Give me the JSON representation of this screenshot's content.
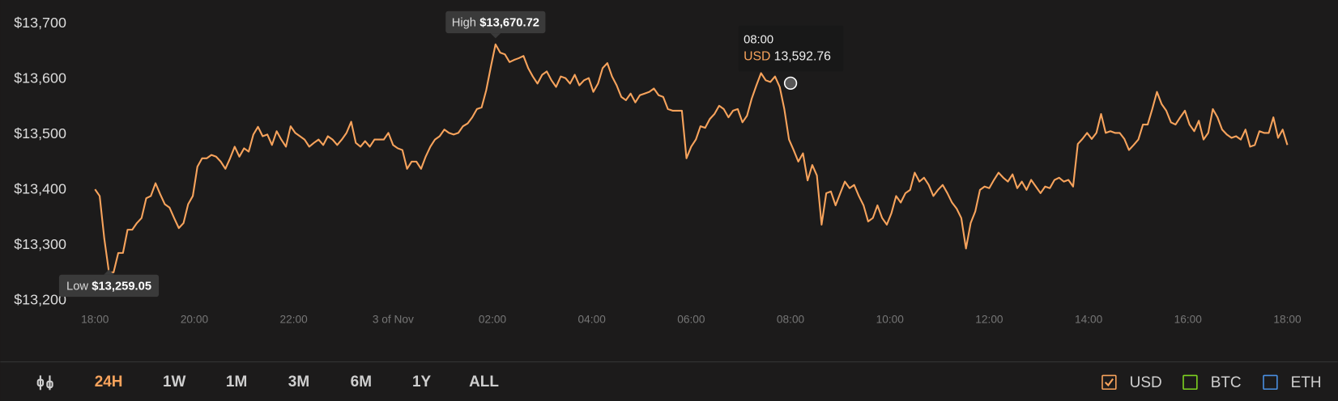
{
  "chart_data": {
    "type": "line",
    "series": [
      {
        "name": "USD",
        "color": "#f7a35c",
        "values": [
          13401,
          13389,
          13312,
          13251,
          13251,
          13286,
          13286,
          13328,
          13328,
          13340,
          13349,
          13385,
          13389,
          13412,
          13392,
          13374,
          13368,
          13349,
          13331,
          13340,
          13374,
          13389,
          13442,
          13457,
          13457,
          13463,
          13460,
          13451,
          13438,
          13457,
          13478,
          13460,
          13475,
          13469,
          13500,
          13514,
          13497,
          13500,
          13481,
          13506,
          13491,
          13478,
          13515,
          13503,
          13497,
          13491,
          13478,
          13485,
          13491,
          13481,
          13497,
          13491,
          13481,
          13491,
          13503,
          13523,
          13485,
          13478,
          13488,
          13478,
          13491,
          13491,
          13491,
          13503,
          13481,
          13475,
          13472,
          13438,
          13451,
          13451,
          13438,
          13460,
          13478,
          13491,
          13497,
          13509,
          13503,
          13500,
          13503,
          13515,
          13520,
          13531,
          13546,
          13549,
          13580,
          13623,
          13663,
          13648,
          13645,
          13631,
          13635,
          13638,
          13642,
          13620,
          13605,
          13592,
          13608,
          13614,
          13598,
          13586,
          13605,
          13602,
          13592,
          13608,
          13589,
          13598,
          13602,
          13577,
          13592,
          13620,
          13629,
          13605,
          13589,
          13568,
          13562,
          13574,
          13558,
          13571,
          13574,
          13577,
          13583,
          13571,
          13568,
          13546,
          13543,
          13543,
          13543,
          13457,
          13478,
          13491,
          13515,
          13512,
          13528,
          13537,
          13552,
          13546,
          13531,
          13543,
          13546,
          13522,
          13534,
          13565,
          13589,
          13611,
          13598,
          13595,
          13605,
          13586,
          13546,
          13491,
          13472,
          13451,
          13466,
          13417,
          13445,
          13426,
          13337,
          13394,
          13397,
          13372,
          13394,
          13415,
          13403,
          13409,
          13389,
          13372,
          13343,
          13349,
          13372,
          13349,
          13337,
          13358,
          13389,
          13377,
          13394,
          13400,
          13431,
          13415,
          13422,
          13409,
          13389,
          13400,
          13409,
          13394,
          13377,
          13366,
          13349,
          13294,
          13340,
          13361,
          13400,
          13406,
          13403,
          13418,
          13431,
          13422,
          13415,
          13428,
          13403,
          13415,
          13400,
          13418,
          13406,
          13394,
          13406,
          13403,
          13418,
          13422,
          13415,
          13418,
          13406,
          13483,
          13492,
          13503,
          13492,
          13503,
          13537,
          13503,
          13506,
          13503,
          13503,
          13492,
          13472,
          13481,
          13491,
          13518,
          13518,
          13546,
          13577,
          13555,
          13543,
          13522,
          13518,
          13531,
          13543,
          13518,
          13506,
          13525,
          13491,
          13503,
          13546,
          13531,
          13509,
          13500,
          13494,
          13497,
          13491,
          13509,
          13478,
          13481,
          13506,
          13503,
          13503,
          13531,
          13494,
          13509,
          13481
        ]
      }
    ],
    "xlim": [
      0,
      24
    ],
    "xticks": [
      {
        "value": 0,
        "label": "18:00"
      },
      {
        "value": 2,
        "label": "20:00"
      },
      {
        "value": 4,
        "label": "22:00"
      },
      {
        "value": 6,
        "label": "3 of Nov"
      },
      {
        "value": 8,
        "label": "02:00"
      },
      {
        "value": 10,
        "label": "04:00"
      },
      {
        "value": 12,
        "label": "06:00"
      },
      {
        "value": 14,
        "label": "08:00"
      },
      {
        "value": 16,
        "label": "10:00"
      },
      {
        "value": 18,
        "label": "12:00"
      },
      {
        "value": 20,
        "label": "14:00"
      },
      {
        "value": 22,
        "label": "16:00"
      },
      {
        "value": 24,
        "label": "18:00"
      }
    ],
    "ylim": [
      13200,
      13700
    ],
    "yticks": [
      {
        "value": 13200,
        "label": "$13,200"
      },
      {
        "value": 13300,
        "label": "$13,300"
      },
      {
        "value": 13400,
        "label": "$13,400"
      },
      {
        "value": 13500,
        "label": "$13,500"
      },
      {
        "value": 13600,
        "label": "$13,600"
      },
      {
        "value": 13700,
        "label": "$13,700"
      }
    ],
    "high": {
      "label": "High",
      "value": 13670.72,
      "value_label": "$13,670.72"
    },
    "low": {
      "label": "Low",
      "value": 13259.05,
      "value_label": "$13,259.05"
    },
    "tooltip": {
      "x": 14,
      "x_label": "08:00",
      "value": 13592.76,
      "value_label": "13,592.76"
    }
  },
  "toolbar": {
    "ranges": [
      "24H",
      "1W",
      "1M",
      "3M",
      "6M",
      "1Y",
      "ALL"
    ]
  },
  "currency_toggles": [
    {
      "label": "USD",
      "color": "#f7a35c",
      "checked": true
    },
    {
      "label": "BTC",
      "color": "#7ed321",
      "checked": false
    },
    {
      "label": "ETH",
      "color": "#4a90e2",
      "checked": false
    }
  ]
}
